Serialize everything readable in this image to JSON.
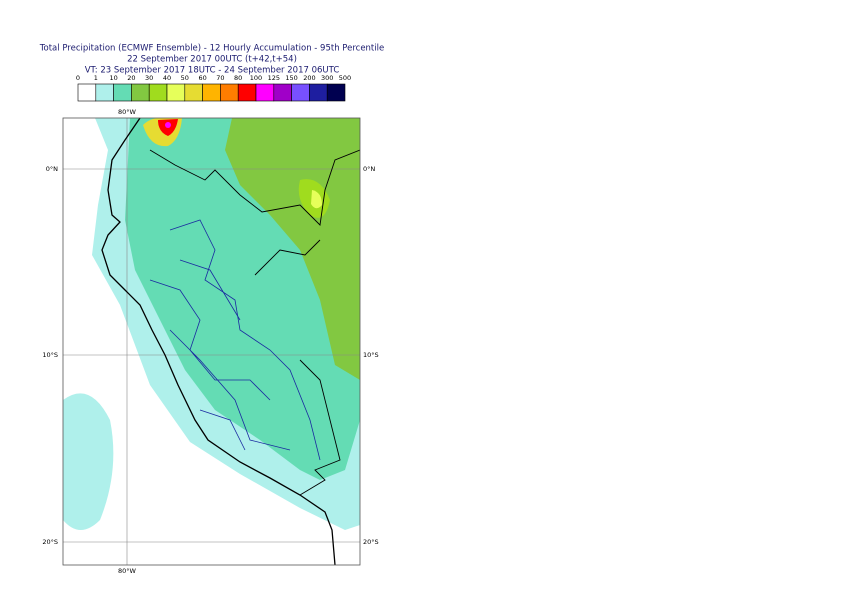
{
  "header": {
    "lines": [
      "Total Precipitation (ECMWF Ensemble) - 12 Hourly Accumulation - 95th Percentile",
      "22 September 2017 00UTC (t+42,t+54)",
      "VT: 23 September 2017 18UTC - 24 September 2017 06UTC"
    ]
  },
  "legend": {
    "labels": [
      0,
      1,
      10,
      20,
      30,
      40,
      50,
      60,
      70,
      80,
      100,
      125,
      150,
      200,
      300,
      500
    ],
    "colors": [
      "#ffffff",
      "#aff0eb",
      "#64dcb4",
      "#82c841",
      "#a0dc1e",
      "#e6ff5a",
      "#e6dc32",
      "#ffb400",
      "#ff7d00",
      "#ff0000",
      "#ff00ff",
      "#a000c8",
      "#7850ff",
      "#1e1ea0",
      "#000050"
    ]
  },
  "map": {
    "lon_labels": [
      "80°W"
    ],
    "lat_labels": [
      "0°N",
      "10°S",
      "20°S"
    ]
  }
}
